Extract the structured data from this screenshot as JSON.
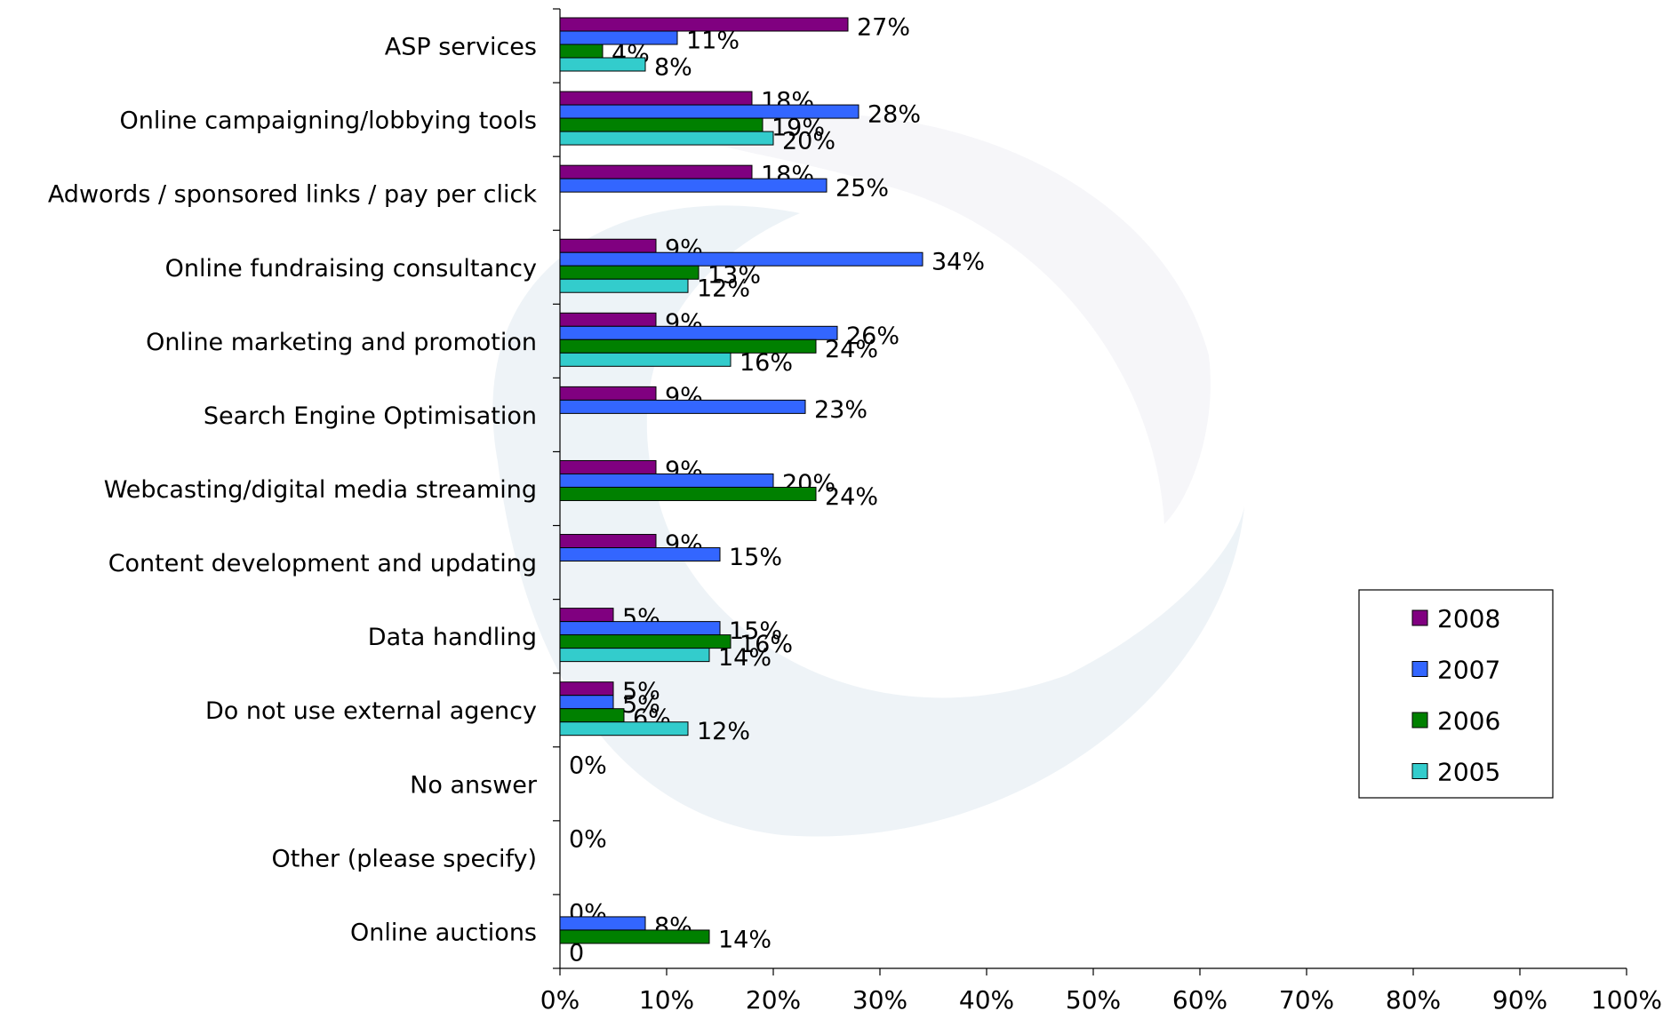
{
  "chart_data": {
    "type": "hbar",
    "categories": [
      "ASP services",
      "Online campaigning/lobbying tools",
      "Adwords / sponsored links / pay per click",
      "Online fundraising consultancy",
      "Online marketing and promotion",
      "Search Engine Optimisation",
      "Webcasting/digital media streaming",
      "Content development and updating",
      "Data handling",
      "Do not use external agency",
      "No answer",
      "Other (please specify)",
      "Online auctions"
    ],
    "series": [
      {
        "name": "2008",
        "color": "#800080",
        "values": [
          27,
          18,
          18,
          9,
          9,
          9,
          9,
          9,
          5,
          5,
          0,
          0,
          0
        ],
        "value_labels": [
          "27%",
          "18%",
          "18%",
          "9%",
          "9%",
          "9%",
          "9%",
          "9%",
          "5%",
          "5%",
          "0%",
          "0%",
          "0%"
        ]
      },
      {
        "name": "2007",
        "color": "#3366ff",
        "values": [
          11,
          28,
          25,
          34,
          26,
          23,
          20,
          15,
          15,
          5,
          null,
          null,
          8
        ],
        "value_labels": [
          "11%",
          "28%",
          "25%",
          "34%",
          "26%",
          "23%",
          "20%",
          "15%",
          "15%",
          "5%",
          null,
          null,
          "8%"
        ]
      },
      {
        "name": "2006",
        "color": "#008000",
        "values": [
          4,
          19,
          null,
          13,
          24,
          null,
          24,
          null,
          16,
          6,
          null,
          null,
          14
        ],
        "value_labels": [
          "4%",
          "19%",
          null,
          "13%",
          "24%",
          null,
          "24%",
          null,
          "16%",
          "6%",
          null,
          null,
          "14%"
        ]
      },
      {
        "name": "2005",
        "color": "#33cccc",
        "values": [
          8,
          20,
          null,
          12,
          16,
          null,
          null,
          null,
          14,
          12,
          null,
          null,
          0
        ],
        "value_labels": [
          "8%",
          "20%",
          null,
          "12%",
          "16%",
          null,
          null,
          null,
          "14%",
          "12%",
          null,
          null,
          "0"
        ]
      }
    ],
    "xlim": [
      0,
      100
    ],
    "xticks": [
      {
        "value": 0,
        "label": "0%"
      },
      {
        "value": 10,
        "label": "10%"
      },
      {
        "value": 20,
        "label": "20%"
      },
      {
        "value": 30,
        "label": "30%"
      },
      {
        "value": 40,
        "label": "40%"
      },
      {
        "value": 50,
        "label": "50%"
      },
      {
        "value": 60,
        "label": "60%"
      },
      {
        "value": 70,
        "label": "70%"
      },
      {
        "value": 80,
        "label": "80%"
      },
      {
        "value": 90,
        "label": "90%"
      },
      {
        "value": 100,
        "label": "100%"
      }
    ],
    "legend": "right"
  }
}
